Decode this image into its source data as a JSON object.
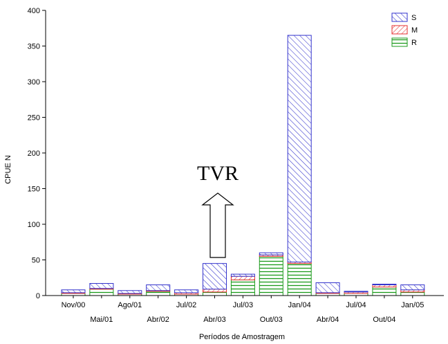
{
  "chart_data": {
    "type": "bar",
    "stacked": true,
    "title": "",
    "xlabel": "Períodos de Amostragem",
    "ylabel": "CPUE N",
    "ylim": [
      0,
      400
    ],
    "yticks": [
      0,
      50,
      100,
      150,
      200,
      250,
      300,
      350,
      400
    ],
    "categories": [
      "Nov/00",
      "Mai/01",
      "Ago/01",
      "Abr/02",
      "Jul/02",
      "Abr/03",
      "Jul/03",
      "Out/03",
      "Jan/04",
      "Abr/04",
      "Jul/04",
      "Out/04",
      "Jan/05"
    ],
    "series": [
      {
        "name": "R",
        "color": "#1a9a1a",
        "pattern": "horizontal",
        "values": [
          3,
          9,
          2,
          6,
          2,
          5,
          22,
          55,
          45,
          3,
          3,
          12,
          5
        ]
      },
      {
        "name": "M",
        "color": "#e63030",
        "pattern": "diagonal-backslash",
        "values": [
          1,
          1,
          1,
          1,
          2,
          4,
          5,
          2,
          2,
          1,
          2,
          3,
          3
        ]
      },
      {
        "name": "S",
        "color": "#3333cc",
        "pattern": "diagonal-slash",
        "values": [
          4,
          7,
          4,
          8,
          4,
          36,
          3,
          3,
          318,
          14,
          1,
          1,
          7
        ]
      }
    ],
    "legend": [
      "S",
      "M",
      "R"
    ],
    "legend_position": "top-right",
    "grid": false,
    "annotation": {
      "text": "TVR",
      "arrow": "up",
      "at_category": "Abr/03"
    }
  }
}
